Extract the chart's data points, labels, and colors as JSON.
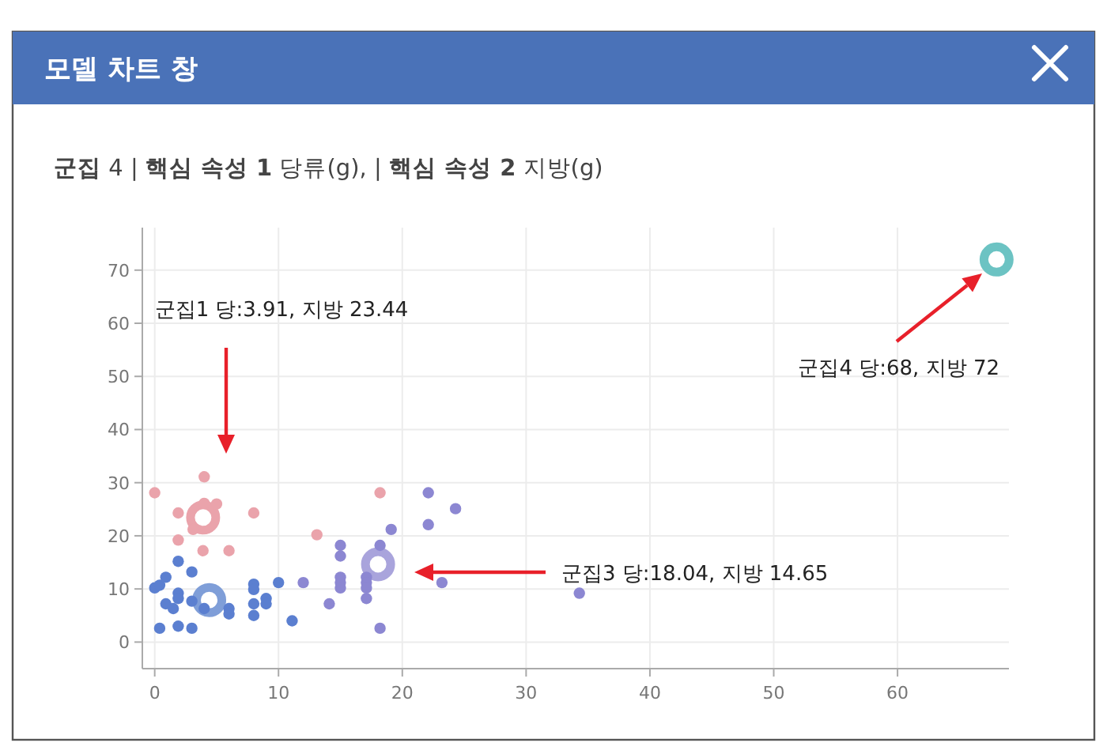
{
  "chart_data": {
    "type": "scatter",
    "title": "모델 차트 창",
    "subtitle": "**군집** 4 | **핵심 속성 1** 당류(g), | **핵심 속성 2** 지방(g)",
    "xlim": [
      -1,
      69
    ],
    "ylim": [
      -5,
      78
    ],
    "xticks": [
      0,
      10,
      20,
      30,
      40,
      50,
      60
    ],
    "yticks": [
      0,
      10,
      20,
      30,
      40,
      50,
      60,
      70
    ],
    "grid": true,
    "marker": "circle",
    "series": [
      {
        "colors": [
          "#eaa3ab",
          "#7f9ed8",
          "#a9a4dc",
          "#6cc3c3"
        ],
        "x": [
          3.91,
          4.4,
          18.04,
          68
        ],
        "values": [
          23.44,
          7.9,
          14.65,
          72
        ]
      },
      {
        "color": "#eaa3ab",
        "x": [
          0,
          4.0,
          1.9,
          4.0,
          5.0,
          1.9,
          3.1,
          3.9,
          6.0,
          8.0,
          13.1,
          18.2
        ],
        "values": [
          28.1,
          31.1,
          24.3,
          26.1,
          26,
          19.2,
          21.2,
          17.2,
          17.2,
          24.3,
          20.2,
          28.1
        ]
      },
      {
        "color": "#5b7fd0",
        "x": [
          0,
          0.4,
          0.9,
          0.4,
          0.9,
          1.5,
          1.9,
          1.9,
          1.9,
          1.9,
          3.0,
          3.0,
          3.0,
          4.0,
          6.0,
          6.0,
          8.0,
          8.0,
          8.0,
          8.0,
          9.0,
          9.0,
          10.0,
          11.1
        ],
        "values": [
          10.2,
          10.7,
          12.2,
          2.6,
          7.2,
          6.3,
          15.2,
          9.2,
          8.2,
          3.0,
          13.2,
          2.6,
          7.7,
          6.3,
          6.3,
          5.3,
          10.9,
          9.9,
          7.2,
          5.0,
          8.2,
          7.2,
          11.2,
          4.0
        ]
      },
      {
        "color": "#8c87d2",
        "x": [
          12.0,
          14.1,
          15.0,
          15.0,
          15.0,
          15.0,
          15.0,
          17.1,
          17.1,
          17.1,
          17.1,
          18.2,
          18.2,
          19.1,
          22.1,
          22.1,
          24.3,
          23.2,
          34.3
        ],
        "values": [
          11.2,
          7.2,
          18.2,
          16.2,
          12.2,
          11.2,
          10.2,
          12.2,
          11.2,
          10.2,
          8.2,
          18.2,
          2.6,
          21.2,
          28.1,
          22.1,
          25.1,
          11.2,
          9.2
        ]
      }
    ],
    "annotations": [
      "군집1 당:3.91, 지방 23.44",
      "군집3 당:18.04, 지방 14.65",
      "군집4 당:68, 지방 72"
    ]
  }
}
